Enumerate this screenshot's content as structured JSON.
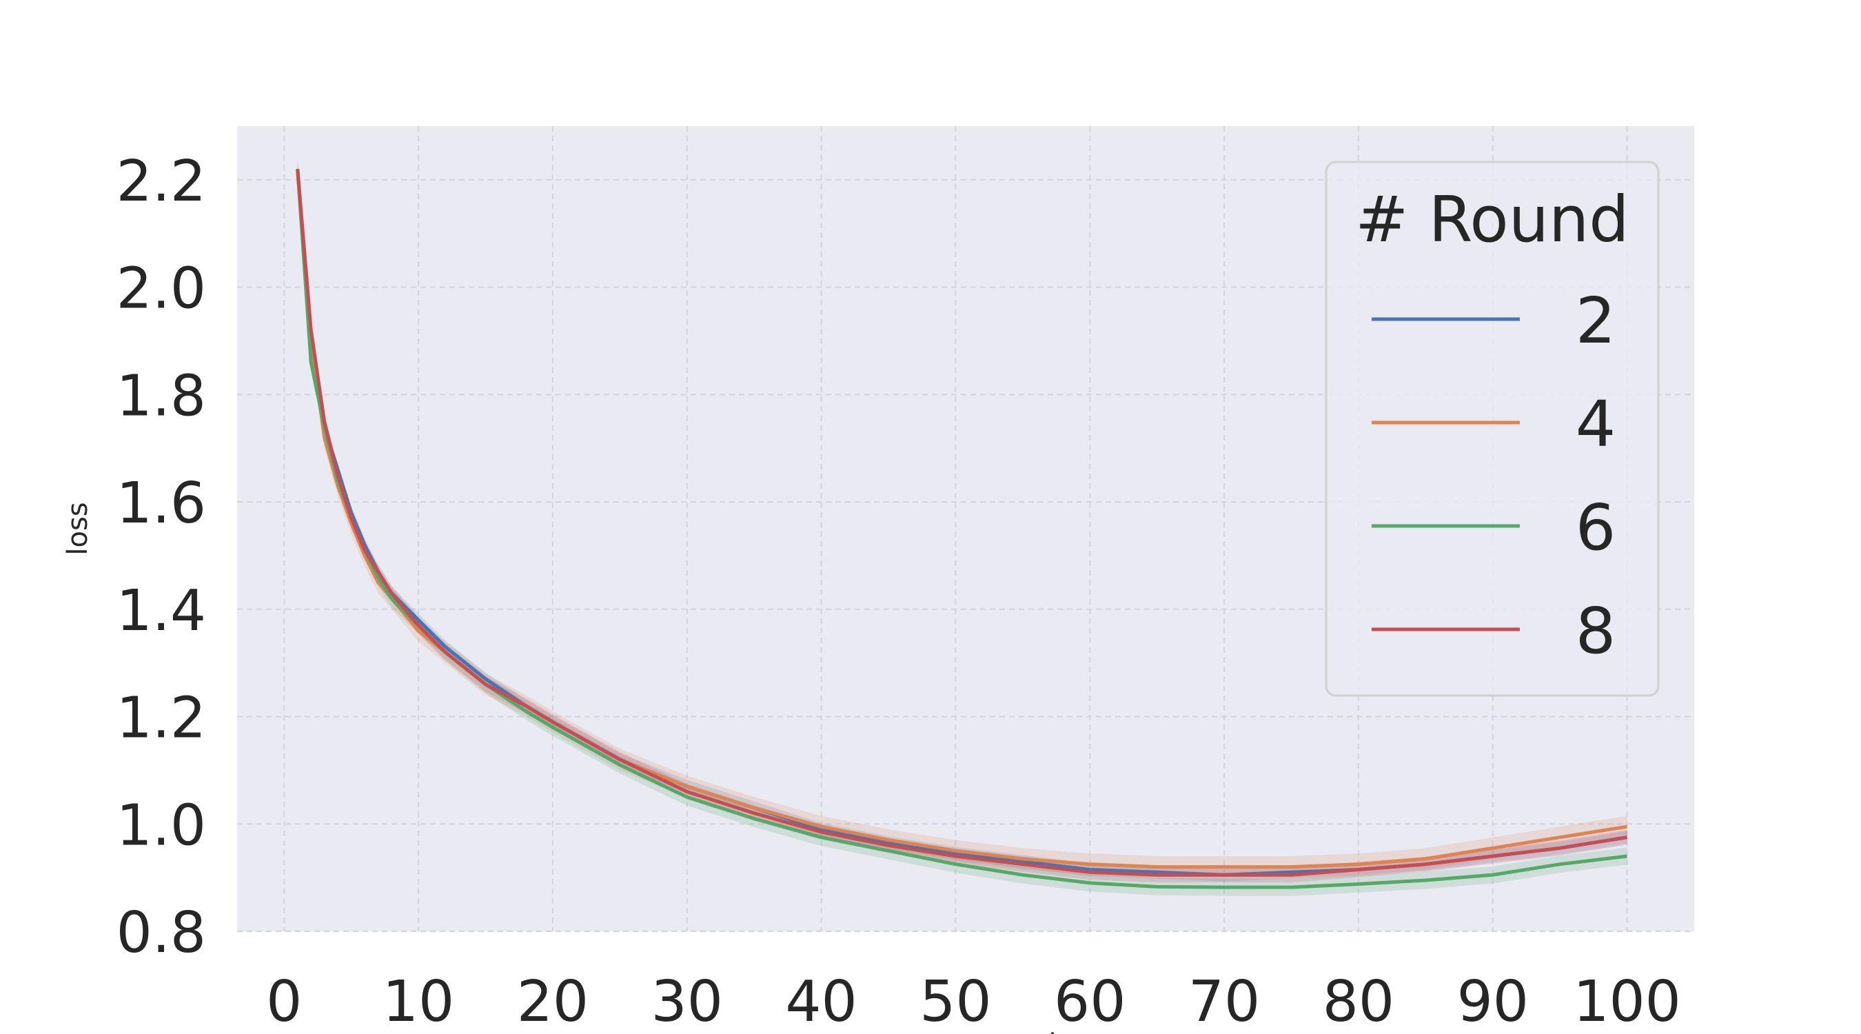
{
  "chart_data": {
    "type": "line",
    "title": "",
    "xlabel": "server_round",
    "ylabel": "loss",
    "xlim": [
      -3.5,
      105
    ],
    "ylim": [
      0.8,
      2.3
    ],
    "xticks": [
      0,
      10,
      20,
      30,
      40,
      50,
      60,
      70,
      80,
      90,
      100
    ],
    "yticks": [
      0.8,
      1.0,
      1.2,
      1.4,
      1.6,
      1.8,
      2.0,
      2.2
    ],
    "grid": true,
    "background": "#eaeaf2",
    "legend": {
      "title": "# Round",
      "placement": "top-right"
    },
    "series": [
      {
        "name": "2",
        "color": "#4c72b0",
        "x": [
          1,
          2,
          3,
          4,
          5,
          6,
          7,
          8,
          10,
          12,
          15,
          18,
          20,
          25,
          30,
          35,
          40,
          45,
          50,
          55,
          60,
          65,
          70,
          75,
          80,
          85,
          90,
          95,
          100
        ],
        "y": [
          2.22,
          1.9,
          1.74,
          1.66,
          1.58,
          1.52,
          1.47,
          1.43,
          1.38,
          1.33,
          1.27,
          1.22,
          1.19,
          1.12,
          1.07,
          1.03,
          0.99,
          0.965,
          0.945,
          0.93,
          0.915,
          0.91,
          0.905,
          0.91,
          0.915,
          0.925,
          0.94,
          0.955,
          0.975
        ],
        "band": 0.012
      },
      {
        "name": "4",
        "color": "#dd8452",
        "x": [
          1,
          2,
          3,
          4,
          5,
          6,
          7,
          8,
          10,
          12,
          15,
          18,
          20,
          25,
          30,
          35,
          40,
          45,
          50,
          55,
          60,
          65,
          70,
          75,
          80,
          85,
          90,
          95,
          100
        ],
        "y": [
          2.22,
          1.9,
          1.72,
          1.63,
          1.56,
          1.5,
          1.45,
          1.42,
          1.36,
          1.32,
          1.26,
          1.22,
          1.19,
          1.12,
          1.07,
          1.03,
          0.995,
          0.97,
          0.95,
          0.935,
          0.925,
          0.92,
          0.92,
          0.92,
          0.925,
          0.935,
          0.955,
          0.975,
          0.995
        ],
        "band": 0.02
      },
      {
        "name": "6",
        "color": "#55a868",
        "x": [
          1,
          2,
          3,
          4,
          5,
          6,
          7,
          8,
          10,
          12,
          15,
          18,
          20,
          25,
          30,
          35,
          40,
          45,
          50,
          55,
          60,
          65,
          70,
          75,
          80,
          85,
          90,
          95,
          100
        ],
        "y": [
          2.22,
          1.86,
          1.74,
          1.64,
          1.57,
          1.51,
          1.46,
          1.42,
          1.37,
          1.32,
          1.26,
          1.21,
          1.18,
          1.11,
          1.05,
          1.01,
          0.975,
          0.95,
          0.925,
          0.905,
          0.89,
          0.883,
          0.882,
          0.882,
          0.888,
          0.895,
          0.905,
          0.925,
          0.94
        ],
        "band": 0.016
      },
      {
        "name": "8",
        "color": "#c44e52",
        "x": [
          1,
          2,
          3,
          4,
          5,
          6,
          7,
          8,
          10,
          12,
          15,
          18,
          20,
          25,
          30,
          35,
          40,
          45,
          50,
          55,
          60,
          65,
          70,
          75,
          80,
          85,
          90,
          95,
          100
        ],
        "y": [
          2.22,
          1.92,
          1.75,
          1.65,
          1.57,
          1.51,
          1.47,
          1.43,
          1.37,
          1.32,
          1.26,
          1.22,
          1.19,
          1.12,
          1.06,
          1.02,
          0.985,
          0.96,
          0.94,
          0.925,
          0.91,
          0.905,
          0.905,
          0.905,
          0.915,
          0.925,
          0.94,
          0.955,
          0.975
        ],
        "band": 0.014
      }
    ]
  }
}
